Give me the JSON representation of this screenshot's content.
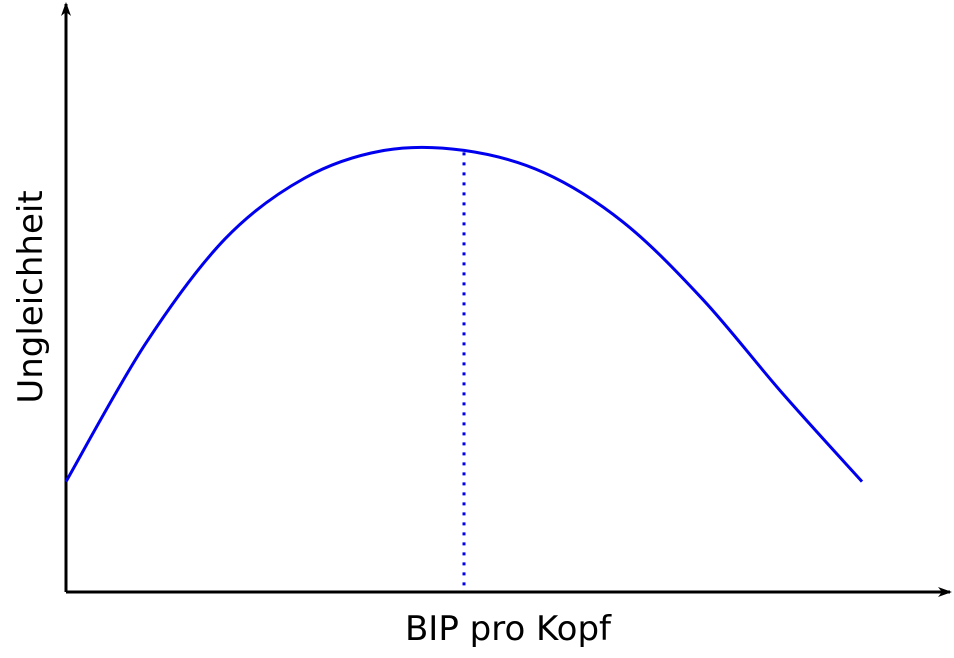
{
  "chart_data": {
    "type": "line",
    "title": "",
    "xlabel": "BIP pro Kopf",
    "ylabel": "Ungleichheit",
    "xlim": [
      0,
      10
    ],
    "ylim": [
      0,
      10
    ],
    "grid": false,
    "legend": "none",
    "series": [
      {
        "values_note": "",
        "x": [
          0,
          1,
          2,
          3,
          4,
          5,
          6,
          7,
          8,
          9,
          10
        ],
        "y": [
          2.0,
          4.5,
          6.4,
          7.5,
          8.0,
          8.0,
          7.6,
          6.7,
          5.3,
          3.6,
          2.0
        ],
        "color": "#0000ee"
      }
    ],
    "reference_line": {
      "x": 5,
      "style": "dotted",
      "color": "#0000ee"
    },
    "axis_color": "#000000"
  }
}
